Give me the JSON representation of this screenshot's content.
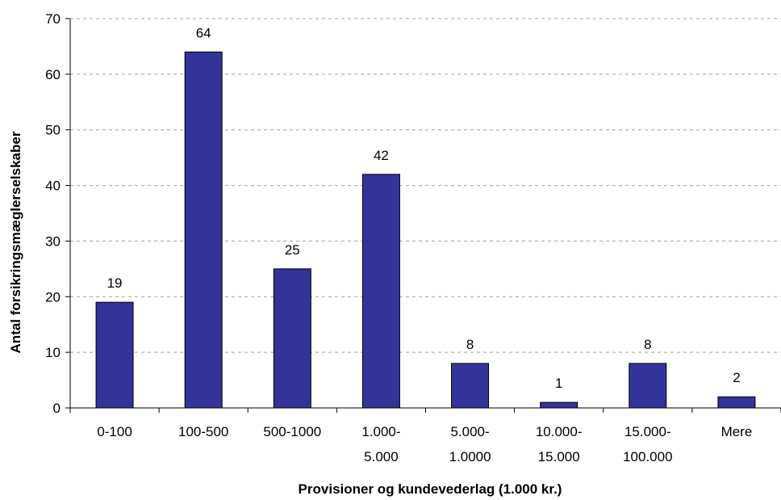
{
  "chart_data": {
    "type": "bar",
    "title": "",
    "xlabel": "Provisioner og kundevederlag (1.000 kr.)",
    "ylabel": "Antal forsikringsmæglerselskaber",
    "categories": [
      [
        "0-100"
      ],
      [
        "100-500"
      ],
      [
        "500-1000"
      ],
      [
        "1.000-",
        "5.000"
      ],
      [
        "5.000-",
        "1.0000"
      ],
      [
        "10.000-",
        "15.000"
      ],
      [
        "15.000-",
        "100.000"
      ],
      [
        "Mere"
      ]
    ],
    "values": [
      19,
      64,
      25,
      42,
      8,
      1,
      8,
      2
    ],
    "ylim": [
      0,
      70
    ],
    "yticks": [
      0,
      10,
      20,
      30,
      40,
      50,
      60,
      70
    ],
    "grid": "horizontal dashed",
    "legend": "none",
    "colors": {
      "bar_fill": "#333399",
      "bar_stroke": "#000000",
      "grid": "#a0a0a0",
      "axis": "#000000"
    }
  }
}
